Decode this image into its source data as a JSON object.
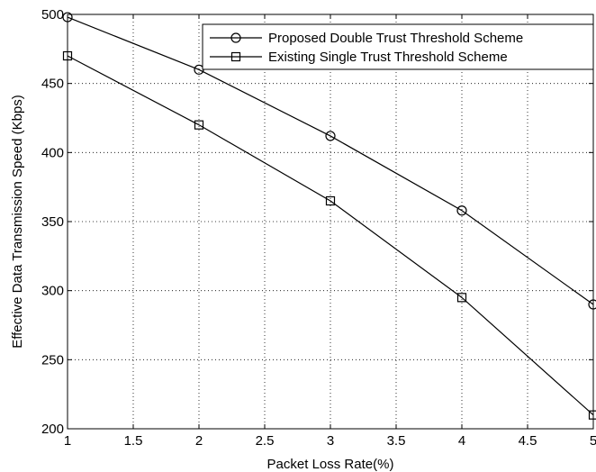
{
  "chart_data": {
    "type": "line",
    "title": "",
    "xlabel": "Packet Loss Rate(%)",
    "ylabel": "Effective Data Transmission Speed (Kbps)",
    "xlim": [
      1,
      5
    ],
    "ylim": [
      200,
      500
    ],
    "xticks": [
      "1",
      "1.5",
      "2",
      "2.5",
      "3",
      "3.5",
      "4",
      "4.5",
      "5"
    ],
    "yticks": [
      "200",
      "250",
      "300",
      "350",
      "400",
      "450",
      "500"
    ],
    "grid": true,
    "legend_position": "top-right",
    "x": [
      1,
      2,
      3,
      4,
      5
    ],
    "series": [
      {
        "name": "Proposed Double Trust Threshold Scheme",
        "marker": "circle",
        "color": "#000000",
        "values": [
          498,
          460,
          412,
          358,
          290
        ]
      },
      {
        "name": "Existing Single Trust Threshold Scheme",
        "marker": "square",
        "color": "#000000",
        "values": [
          470,
          420,
          365,
          295,
          210
        ]
      }
    ]
  }
}
